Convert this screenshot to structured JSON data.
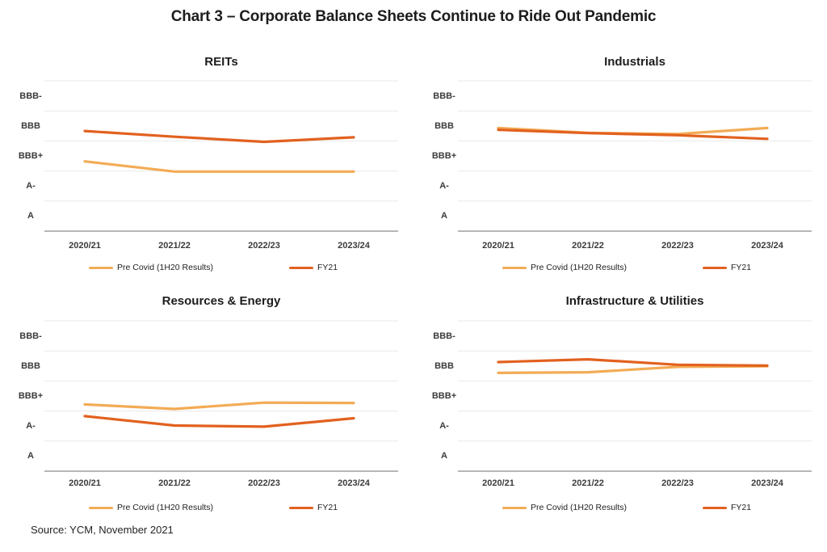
{
  "title": "Chart 3 – Corporate Balance Sheets Continue to Ride Out Pandemic",
  "source_note": "Source: YCM, November 2021",
  "axes": {
    "x_labels": [
      "2020/21",
      "2021/22",
      "2022/23",
      "2023/24"
    ],
    "y_labels": [
      "BBB-",
      "BBB",
      "BBB+",
      "A-",
      "A"
    ]
  },
  "colors": {
    "pre_covid": "#F3AB55",
    "fy21": "#E2611F",
    "gridline": "#E9E9E9",
    "axis_line": "#9E9E9E",
    "heading_text": "#1d1d1d",
    "label_text": "#3b3b3b"
  },
  "chart_data": [
    {
      "type": "line",
      "title": "REITs",
      "categories": [
        "2020/21",
        "2021/22",
        "2022/23",
        "2023/24"
      ],
      "y_tick_labels": [
        "BBB-",
        "BBB",
        "BBB+",
        "A-",
        "A"
      ],
      "y_numeric_mapping": "BBB- = 5, BBB = 4, BBB+ = 3, A- = 2, A = 1; gridlines at half steps",
      "ylim": [
        0.5,
        5.5
      ],
      "grid": "horizontal only",
      "legend_position": "bottom",
      "series": [
        {
          "name": "Pre Covid (1H20 Results)",
          "color": "#F3AB55",
          "values": [
            2.82,
            2.48,
            2.48,
            2.48
          ]
        },
        {
          "name": "FY21",
          "color": "#E2611F",
          "values": [
            3.83,
            3.64,
            3.47,
            3.62
          ]
        }
      ]
    },
    {
      "type": "line",
      "title": "Industrials",
      "categories": [
        "2020/21",
        "2021/22",
        "2022/23",
        "2023/24"
      ],
      "y_tick_labels": [
        "BBB-",
        "BBB",
        "BBB+",
        "A-",
        "A"
      ],
      "y_numeric_mapping": "BBB- = 5, BBB = 4, BBB+ = 3, A- = 2, A = 1; gridlines at half steps",
      "ylim": [
        0.5,
        5.5
      ],
      "grid": "horizontal only",
      "legend_position": "bottom",
      "series": [
        {
          "name": "Pre Covid (1H20 Results)",
          "color": "#F3AB55",
          "values": [
            3.93,
            3.77,
            3.73,
            3.93
          ]
        },
        {
          "name": "FY21",
          "color": "#E2611F",
          "values": [
            3.87,
            3.76,
            3.69,
            3.57
          ]
        }
      ]
    },
    {
      "type": "line",
      "title": "Resources & Energy",
      "categories": [
        "2020/21",
        "2021/22",
        "2022/23",
        "2023/24"
      ],
      "y_tick_labels": [
        "BBB-",
        "BBB",
        "BBB+",
        "A-",
        "A"
      ],
      "y_numeric_mapping": "BBB- = 5, BBB = 4, BBB+ = 3, A- = 2, A = 1; gridlines at half steps",
      "ylim": [
        0.5,
        5.5
      ],
      "grid": "horizontal only",
      "legend_position": "bottom",
      "series": [
        {
          "name": "Pre Covid (1H20 Results)",
          "color": "#F3AB55",
          "values": [
            2.72,
            2.57,
            2.78,
            2.77
          ]
        },
        {
          "name": "FY21",
          "color": "#E2611F",
          "values": [
            2.33,
            2.02,
            1.98,
            2.26
          ]
        }
      ]
    },
    {
      "type": "line",
      "title": "Infrastructure & Utilities",
      "categories": [
        "2020/21",
        "2021/22",
        "2022/23",
        "2023/24"
      ],
      "y_tick_labels": [
        "BBB-",
        "BBB",
        "BBB+",
        "A-",
        "A"
      ],
      "y_numeric_mapping": "BBB- = 5, BBB = 4, BBB+ = 3, A- = 2, A = 1; gridlines at half steps",
      "ylim": [
        0.5,
        5.5
      ],
      "grid": "horizontal only",
      "legend_position": "bottom",
      "series": [
        {
          "name": "Pre Covid (1H20 Results)",
          "color": "#F3AB55",
          "values": [
            3.77,
            3.79,
            3.97,
            3.99
          ]
        },
        {
          "name": "FY21",
          "color": "#E2611F",
          "values": [
            4.13,
            4.22,
            4.04,
            4.01
          ]
        }
      ]
    }
  ]
}
